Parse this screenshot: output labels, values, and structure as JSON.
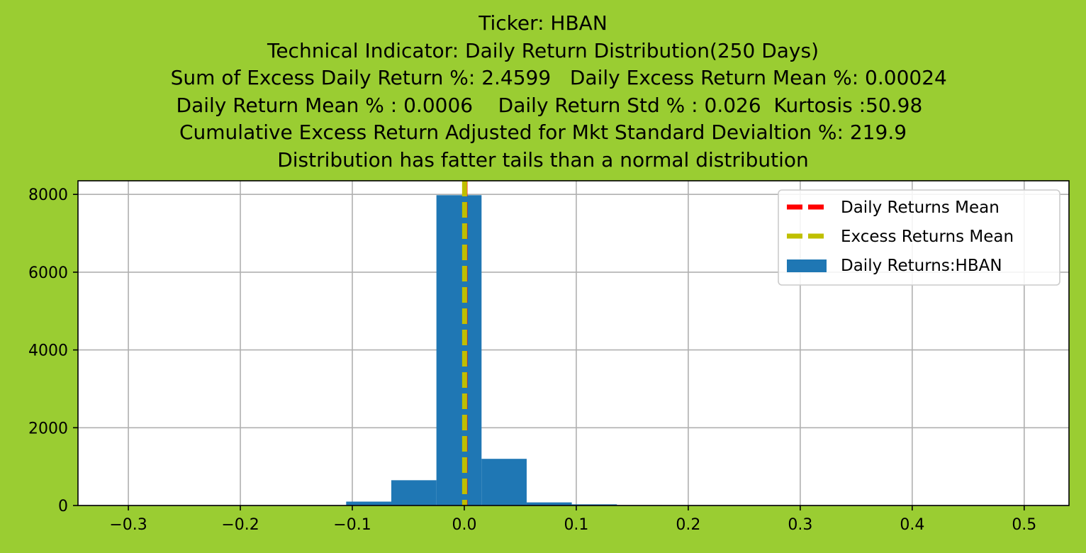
{
  "title_lines": [
    "Ticker: HBAN",
    "Technical Indicator: Daily Return Distribution(250 Days)",
    "     Sum of Excess Daily Return %: 2.4599   Daily Excess Return Mean %: 0.00024",
    "  Daily Return Mean % : 0.0006    Daily Return Std % : 0.026  Kurtosis :50.98",
    "Cumulative Excess Return Adjusted for Mkt Standard Devialtion %: 219.9",
    "Distribution has fatter tails than a normal distribution"
  ],
  "chart_data": {
    "type": "bar",
    "xlim": [
      -0.345,
      0.54
    ],
    "ylim": [
      0,
      8350
    ],
    "x_ticks": [
      -0.3,
      -0.2,
      -0.1,
      0.0,
      0.1,
      0.2,
      0.3,
      0.4,
      0.5
    ],
    "x_tick_labels": [
      "−0.3",
      "−0.2",
      "−0.1",
      "0.0",
      "0.1",
      "0.2",
      "0.3",
      "0.4",
      "0.5"
    ],
    "y_ticks": [
      0,
      2000,
      4000,
      6000,
      8000
    ],
    "y_tick_labels": [
      "0",
      "2000",
      "4000",
      "6000",
      "8000"
    ],
    "grid": true,
    "histogram": {
      "name": "Daily Returns:HBAN",
      "color": "#1f77b4",
      "bin_width": 0.0403,
      "bin_starts": [
        -0.3231,
        -0.2828,
        -0.2425,
        -0.2022,
        -0.1619,
        -0.1216,
        -0.1055,
        -0.0652,
        -0.0249,
        0.0154,
        0.0557,
        0.096,
        0.1363,
        0.1766,
        0.2169,
        0.2572,
        0.2975,
        0.3378,
        0.3781,
        0.4184,
        0.4587
      ],
      "counts": [
        1,
        0,
        0,
        0,
        2,
        5,
        100,
        650,
        7980,
        1200,
        80,
        30,
        10,
        4,
        2,
        1,
        1,
        0,
        0,
        0,
        1
      ]
    },
    "lines": [
      {
        "name": "Daily Returns Mean",
        "x": 0.0006,
        "color": "#ff0000",
        "style": "dashed"
      },
      {
        "name": "Excess Returns Mean",
        "x": 0.00024,
        "color": "#bfbf00",
        "style": "dashed"
      }
    ],
    "legend": {
      "placement": "upper right",
      "entries": [
        "Daily Returns Mean",
        "Excess Returns Mean",
        "Daily Returns:HBAN"
      ]
    }
  }
}
